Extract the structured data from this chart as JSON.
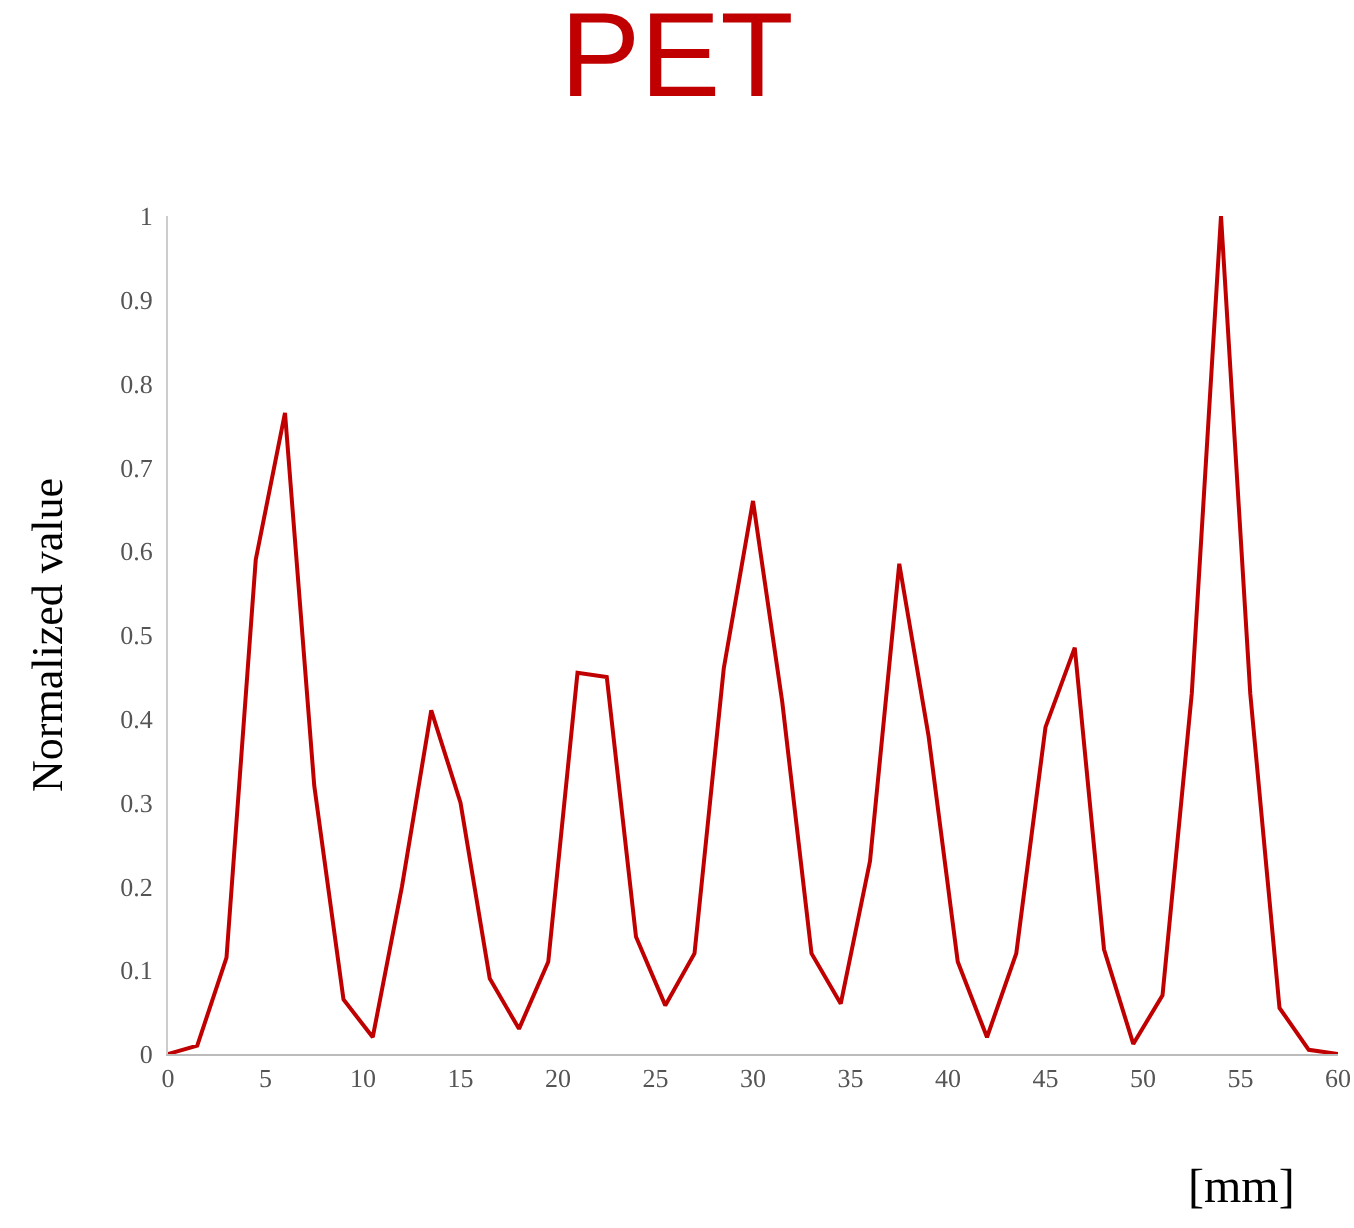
{
  "chart_data": {
    "type": "line",
    "title": "PET",
    "xlabel": "[mm]",
    "ylabel": "Normalized value",
    "x": [
      0,
      1.5,
      3,
      4.5,
      6,
      7.5,
      9,
      10.5,
      12,
      13.5,
      15,
      16.5,
      18,
      19.5,
      21,
      22.5,
      24,
      25.5,
      27,
      28.5,
      30,
      31.5,
      33,
      34.5,
      36,
      37.5,
      39,
      40.5,
      42,
      43.5,
      45,
      46.5,
      48,
      49.5,
      51,
      52.5,
      54,
      55.5,
      57,
      58.5,
      60
    ],
    "series": [
      {
        "color": "#c00000",
        "values": [
          0,
          0.01,
          0.115,
          0.59,
          0.765,
          0.32,
          0.065,
          0.02,
          0.2,
          0.41,
          0.3,
          0.09,
          0.03,
          0.11,
          0.455,
          0.45,
          0.14,
          0.058,
          0.12,
          0.46,
          0.66,
          0.42,
          0.12,
          0.06,
          0.23,
          0.585,
          0.38,
          0.11,
          0.02,
          0.12,
          0.39,
          0.485,
          0.125,
          0.012,
          0.07,
          0.43,
          1.0,
          0.43,
          0.055,
          0.005,
          0
        ]
      }
    ],
    "xlim": [
      0,
      60
    ],
    "xticks": [
      0,
      5,
      10,
      15,
      20,
      25,
      30,
      35,
      40,
      45,
      50,
      55,
      60
    ],
    "ylim": [
      0,
      1
    ],
    "yticks": [
      0,
      0.1,
      0.2,
      0.3,
      0.4,
      0.5,
      0.6,
      0.7,
      0.8,
      0.9,
      1
    ],
    "grid": false,
    "marker": "none",
    "line_style": "solid"
  }
}
